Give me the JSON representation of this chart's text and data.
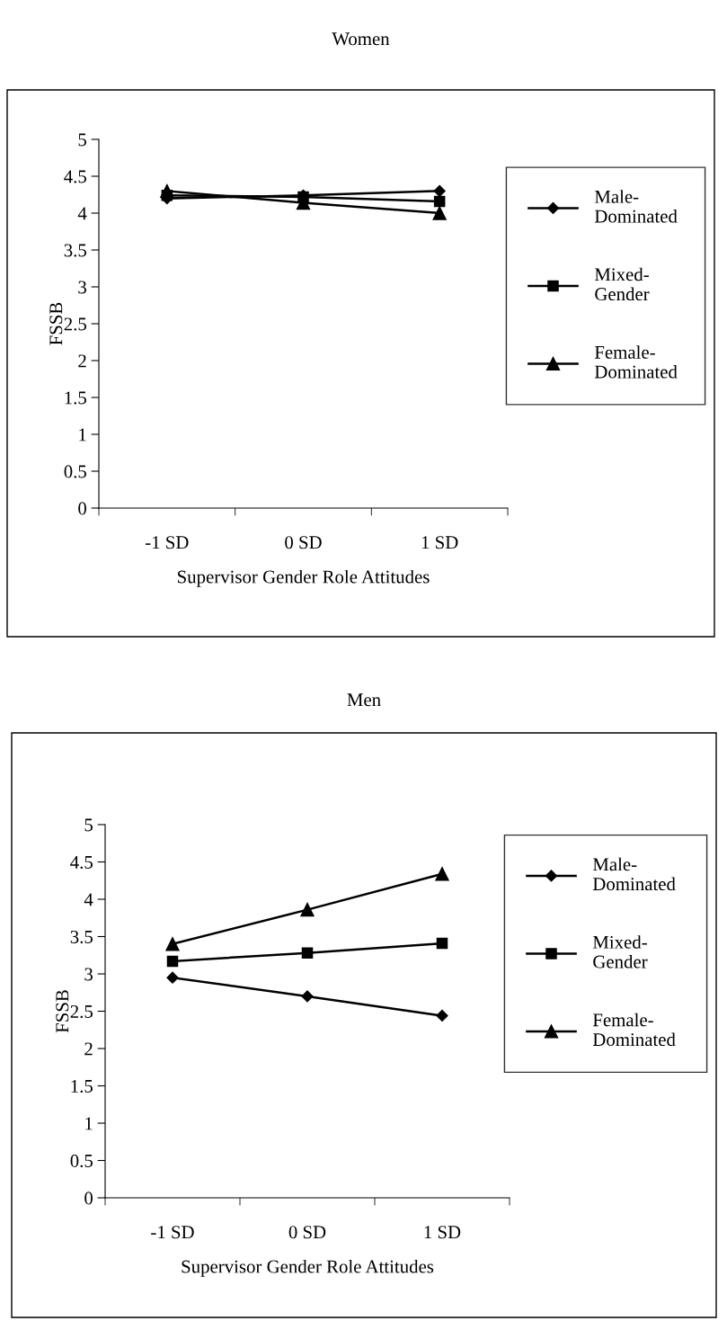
{
  "chart_data": [
    {
      "type": "line",
      "title": "Women",
      "xlabel": "Supervisor Gender Role Attitudes",
      "ylabel": "FSSB",
      "categories": [
        "-1 SD",
        "0 SD",
        "1 SD"
      ],
      "ylim": [
        0,
        5
      ],
      "yticks": [
        0,
        0.5,
        1,
        1.5,
        2,
        2.5,
        3,
        3.5,
        4,
        4.5,
        5
      ],
      "grid": false,
      "legend": "right",
      "series": [
        {
          "name": "Male-Dominated",
          "color": "#000000",
          "marker": "diamond",
          "values": [
            4.2,
            4.24,
            4.3
          ]
        },
        {
          "name": "Mixed-Gender",
          "color": "#000000",
          "marker": "square",
          "values": [
            4.24,
            4.22,
            4.16
          ]
        },
        {
          "name": "Female-Dominated",
          "color": "#000000",
          "marker": "triangle",
          "values": [
            4.3,
            4.14,
            4.0
          ]
        }
      ]
    },
    {
      "type": "line",
      "title": "Men",
      "xlabel": "Supervisor Gender Role Attitudes",
      "ylabel": "FSSB",
      "categories": [
        "-1 SD",
        "0 SD",
        "1 SD"
      ],
      "ylim": [
        0,
        5
      ],
      "yticks": [
        0,
        0.5,
        1,
        1.5,
        2,
        2.5,
        3,
        3.5,
        4,
        4.5,
        5
      ],
      "grid": false,
      "legend": "right",
      "series": [
        {
          "name": "Male-Dominated",
          "color": "#000000",
          "marker": "diamond",
          "values": [
            2.95,
            2.7,
            2.44
          ]
        },
        {
          "name": "Mixed-Gender",
          "color": "#000000",
          "marker": "square",
          "values": [
            3.17,
            3.28,
            3.41
          ]
        },
        {
          "name": "Female-Dominated",
          "color": "#000000",
          "marker": "triangle",
          "values": [
            3.4,
            3.86,
            4.34
          ]
        }
      ]
    }
  ]
}
